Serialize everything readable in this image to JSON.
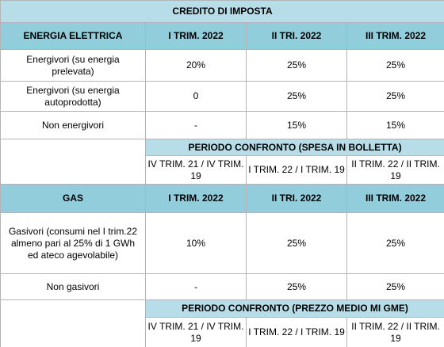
{
  "table": {
    "title": "CREDITO DI IMPOSTA",
    "sections": [
      {
        "header": [
          "ENERGIA ELETTRICA",
          "I TRIM. 2022",
          "II TRI. 2022",
          "III TRIM. 2022"
        ],
        "rows": [
          [
            "Energivori (su energia prelevata)",
            "20%",
            "25%",
            "25%"
          ],
          [
            "Energivori (su energia autoprodotta)",
            "0",
            "25%",
            "25%"
          ],
          [
            "Non energivori",
            "-",
            "15%",
            "15%"
          ]
        ],
        "period_title": "PERIODO CONFRONTO (SPESA IN BOLLETTA)",
        "periods": [
          "IV TRIM. 21 / IV TRIM. 19",
          "I TRIM. 22 / I TRIM. 19",
          "II TRIM. 22 / II TRIM. 19"
        ]
      },
      {
        "header": [
          "GAS",
          "I TRIM. 2022",
          "II TRI. 2022",
          "III TRIM. 2022"
        ],
        "rows": [
          [
            "Gasivori (consumi nel I trim.22 almeno pari al 25% di 1 GWh ed ateco agevolabile)",
            "10%",
            "25%",
            "25%"
          ],
          [
            "Non gasivori",
            "-",
            "25%",
            "25%"
          ]
        ],
        "period_title": "PERIODO CONFRONTO (PREZZO MEDIO MI GME)",
        "periods": [
          "IV TRIM. 21 / IV TRIM. 19",
          "I TRIM. 22 / I TRIM. 19",
          "II TRIM. 22 / II TRIM. 19"
        ]
      }
    ]
  }
}
